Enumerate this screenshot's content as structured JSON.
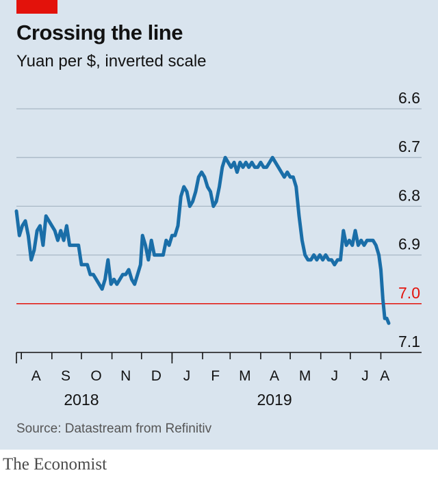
{
  "title": "Crossing the line",
  "subtitle": "Yuan per $, inverted scale",
  "source": "Source: Datastream from Refinitiv",
  "brand": "The Economist",
  "colors": {
    "background": "#d9e4ee",
    "line": "#1a6ea8",
    "threshold": "#e3120b",
    "grid": "#a9b8c5",
    "accent_tag": "#e3120b"
  },
  "chart_data": {
    "type": "line",
    "title": "Crossing the line",
    "subtitle": "Yuan per $, inverted scale",
    "y_scale": "inverted",
    "ylim": [
      6.6,
      7.1
    ],
    "yticks": [
      {
        "value": 6.6,
        "label": "6.6"
      },
      {
        "value": 6.7,
        "label": "6.7"
      },
      {
        "value": 6.8,
        "label": "6.8"
      },
      {
        "value": 6.9,
        "label": "6.9"
      },
      {
        "value": 7.0,
        "label": "7.0",
        "highlight": true
      },
      {
        "value": 7.1,
        "label": "7.1"
      }
    ],
    "xlim": [
      "2018-07-27",
      "2019-08-09"
    ],
    "month_ticks": [
      "2018-08-01",
      "2018-09-01",
      "2018-10-01",
      "2018-11-01",
      "2018-12-01",
      "2019-01-01",
      "2019-02-01",
      "2019-03-01",
      "2019-04-01",
      "2019-05-01",
      "2019-06-01",
      "2019-07-01",
      "2019-08-01"
    ],
    "month_labels": [
      {
        "label": "A",
        "center": "2018-08-16"
      },
      {
        "label": "S",
        "center": "2018-09-15"
      },
      {
        "label": "O",
        "center": "2018-10-16"
      },
      {
        "label": "N",
        "center": "2018-11-15"
      },
      {
        "label": "D",
        "center": "2018-12-16"
      },
      {
        "label": "J",
        "center": "2019-01-16"
      },
      {
        "label": "F",
        "center": "2019-02-14"
      },
      {
        "label": "M",
        "center": "2019-03-16"
      },
      {
        "label": "A",
        "center": "2019-04-15"
      },
      {
        "label": "M",
        "center": "2019-05-16"
      },
      {
        "label": "J",
        "center": "2019-06-15"
      },
      {
        "label": "J",
        "center": "2019-07-16"
      },
      {
        "label": "A",
        "center": "2019-08-05"
      }
    ],
    "year_labels": [
      {
        "label": "2018",
        "center": "2018-10-01"
      },
      {
        "label": "2019",
        "center": "2019-04-15"
      }
    ],
    "year_break": "2019-01-01",
    "series": [
      {
        "points": [
          [
            "2018-07-27",
            6.81
          ],
          [
            "2018-07-30",
            6.86
          ],
          [
            "2018-08-02",
            6.84
          ],
          [
            "2018-08-05",
            6.83
          ],
          [
            "2018-08-08",
            6.86
          ],
          [
            "2018-08-11",
            6.91
          ],
          [
            "2018-08-14",
            6.89
          ],
          [
            "2018-08-17",
            6.85
          ],
          [
            "2018-08-20",
            6.84
          ],
          [
            "2018-08-23",
            6.88
          ],
          [
            "2018-08-26",
            6.82
          ],
          [
            "2018-08-29",
            6.83
          ],
          [
            "2018-09-01",
            6.84
          ],
          [
            "2018-09-04",
            6.85
          ],
          [
            "2018-09-07",
            6.87
          ],
          [
            "2018-09-10",
            6.85
          ],
          [
            "2018-09-13",
            6.87
          ],
          [
            "2018-09-16",
            6.84
          ],
          [
            "2018-09-19",
            6.88
          ],
          [
            "2018-09-22",
            6.88
          ],
          [
            "2018-09-25",
            6.88
          ],
          [
            "2018-09-28",
            6.88
          ],
          [
            "2018-10-01",
            6.92
          ],
          [
            "2018-10-04",
            6.92
          ],
          [
            "2018-10-07",
            6.92
          ],
          [
            "2018-10-10",
            6.94
          ],
          [
            "2018-10-13",
            6.94
          ],
          [
            "2018-10-16",
            6.95
          ],
          [
            "2018-10-19",
            6.96
          ],
          [
            "2018-10-22",
            6.97
          ],
          [
            "2018-10-25",
            6.95
          ],
          [
            "2018-10-28",
            6.91
          ],
          [
            "2018-10-31",
            6.96
          ],
          [
            "2018-11-03",
            6.95
          ],
          [
            "2018-11-06",
            6.96
          ],
          [
            "2018-11-09",
            6.95
          ],
          [
            "2018-11-12",
            6.94
          ],
          [
            "2018-11-15",
            6.94
          ],
          [
            "2018-11-18",
            6.93
          ],
          [
            "2018-11-21",
            6.95
          ],
          [
            "2018-11-24",
            6.96
          ],
          [
            "2018-11-27",
            6.94
          ],
          [
            "2018-11-30",
            6.92
          ],
          [
            "2018-12-02",
            6.86
          ],
          [
            "2018-12-05",
            6.88
          ],
          [
            "2018-12-08",
            6.91
          ],
          [
            "2018-12-11",
            6.87
          ],
          [
            "2018-12-14",
            6.9
          ],
          [
            "2018-12-17",
            6.9
          ],
          [
            "2018-12-20",
            6.9
          ],
          [
            "2018-12-23",
            6.9
          ],
          [
            "2018-12-26",
            6.87
          ],
          [
            "2018-12-29",
            6.88
          ],
          [
            "2019-01-01",
            6.86
          ],
          [
            "2019-01-04",
            6.86
          ],
          [
            "2019-01-07",
            6.84
          ],
          [
            "2019-01-10",
            6.78
          ],
          [
            "2019-01-13",
            6.76
          ],
          [
            "2019-01-16",
            6.77
          ],
          [
            "2019-01-19",
            6.8
          ],
          [
            "2019-01-22",
            6.79
          ],
          [
            "2019-01-25",
            6.77
          ],
          [
            "2019-01-28",
            6.74
          ],
          [
            "2019-01-31",
            6.73
          ],
          [
            "2019-02-03",
            6.74
          ],
          [
            "2019-02-06",
            6.76
          ],
          [
            "2019-02-09",
            6.77
          ],
          [
            "2019-02-12",
            6.8
          ],
          [
            "2019-02-15",
            6.79
          ],
          [
            "2019-02-18",
            6.76
          ],
          [
            "2019-02-21",
            6.72
          ],
          [
            "2019-02-24",
            6.7
          ],
          [
            "2019-02-27",
            6.71
          ],
          [
            "2019-03-02",
            6.72
          ],
          [
            "2019-03-05",
            6.71
          ],
          [
            "2019-03-08",
            6.73
          ],
          [
            "2019-03-11",
            6.71
          ],
          [
            "2019-03-14",
            6.72
          ],
          [
            "2019-03-17",
            6.71
          ],
          [
            "2019-03-20",
            6.72
          ],
          [
            "2019-03-23",
            6.71
          ],
          [
            "2019-03-26",
            6.72
          ],
          [
            "2019-03-29",
            6.72
          ],
          [
            "2019-04-01",
            6.71
          ],
          [
            "2019-04-04",
            6.72
          ],
          [
            "2019-04-07",
            6.72
          ],
          [
            "2019-04-10",
            6.71
          ],
          [
            "2019-04-13",
            6.7
          ],
          [
            "2019-04-16",
            6.71
          ],
          [
            "2019-04-19",
            6.72
          ],
          [
            "2019-04-22",
            6.73
          ],
          [
            "2019-04-25",
            6.74
          ],
          [
            "2019-04-28",
            6.73
          ],
          [
            "2019-05-01",
            6.74
          ],
          [
            "2019-05-04",
            6.74
          ],
          [
            "2019-05-07",
            6.76
          ],
          [
            "2019-05-10",
            6.82
          ],
          [
            "2019-05-13",
            6.87
          ],
          [
            "2019-05-16",
            6.9
          ],
          [
            "2019-05-19",
            6.91
          ],
          [
            "2019-05-22",
            6.91
          ],
          [
            "2019-05-25",
            6.9
          ],
          [
            "2019-05-28",
            6.91
          ],
          [
            "2019-05-31",
            6.9
          ],
          [
            "2019-06-03",
            6.91
          ],
          [
            "2019-06-06",
            6.9
          ],
          [
            "2019-06-09",
            6.91
          ],
          [
            "2019-06-12",
            6.91
          ],
          [
            "2019-06-15",
            6.92
          ],
          [
            "2019-06-18",
            6.91
          ],
          [
            "2019-06-21",
            6.91
          ],
          [
            "2019-06-24",
            6.85
          ],
          [
            "2019-06-27",
            6.88
          ],
          [
            "2019-06-30",
            6.87
          ],
          [
            "2019-07-03",
            6.88
          ],
          [
            "2019-07-06",
            6.85
          ],
          [
            "2019-07-09",
            6.88
          ],
          [
            "2019-07-12",
            6.87
          ],
          [
            "2019-07-15",
            6.88
          ],
          [
            "2019-07-18",
            6.87
          ],
          [
            "2019-07-21",
            6.87
          ],
          [
            "2019-07-24",
            6.87
          ],
          [
            "2019-07-27",
            6.88
          ],
          [
            "2019-07-30",
            6.9
          ],
          [
            "2019-08-01",
            6.93
          ],
          [
            "2019-08-03",
            6.99
          ],
          [
            "2019-08-05",
            7.03
          ],
          [
            "2019-08-07",
            7.03
          ],
          [
            "2019-08-09",
            7.04
          ]
        ]
      }
    ]
  }
}
